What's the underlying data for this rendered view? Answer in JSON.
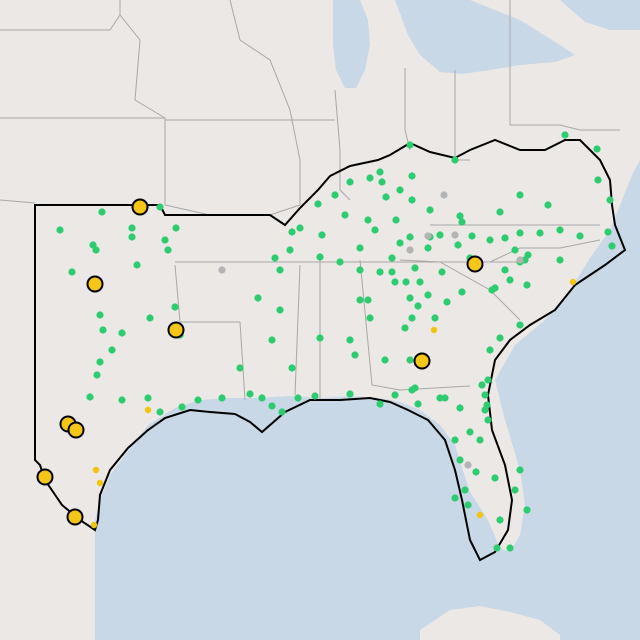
{
  "map": {
    "type": "point-map",
    "colors": {
      "land": "#ebe8e5",
      "water": "#c9d8e6",
      "state_border": "#a8a8a8",
      "region_outline": "#000000",
      "point_green": "#2ecc71",
      "point_gray": "#b4b4b4",
      "point_yellow": "#f1c40f",
      "marker_yellow": "#f5c518",
      "marker_stroke": "#000000"
    },
    "legend": null
  }
}
